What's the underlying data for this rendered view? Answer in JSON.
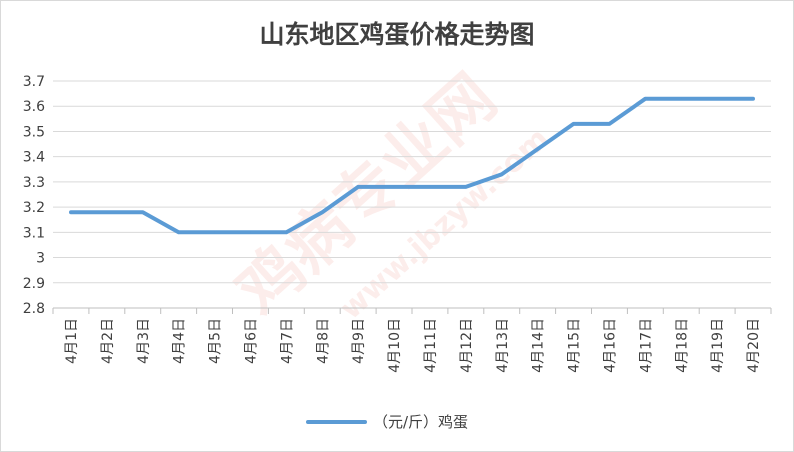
{
  "chart_data": {
    "type": "line",
    "title": "山东地区鸡蛋价格走势图",
    "xlabel": "",
    "ylabel": "",
    "categories": [
      "4月1日",
      "4月2日",
      "4月3日",
      "4月4日",
      "4月5日",
      "4月6日",
      "4月7日",
      "4月8日",
      "4月9日",
      "4月10日",
      "4月11日",
      "4月12日",
      "4月13日",
      "4月14日",
      "4月15日",
      "4月16日",
      "4月17日",
      "4月18日",
      "4月19日",
      "4月20日"
    ],
    "series": [
      {
        "name": "（元/斤）鸡蛋",
        "color": "#5b9bd5",
        "values": [
          3.18,
          3.18,
          3.18,
          3.1,
          3.1,
          3.1,
          3.1,
          3.18,
          3.28,
          3.28,
          3.28,
          3.28,
          3.33,
          3.43,
          3.53,
          3.53,
          3.63,
          3.63,
          3.63,
          3.63
        ]
      }
    ],
    "ylim": [
      2.8,
      3.7
    ],
    "yticks": [
      2.8,
      2.9,
      3,
      3.1,
      3.2,
      3.3,
      3.4,
      3.5,
      3.6,
      3.7
    ],
    "grid": true,
    "legend_position": "bottom"
  },
  "watermark": {
    "text_main": "鸡病专业网",
    "text_url": "www.jbzyw.com",
    "color": "#e85b4a"
  }
}
